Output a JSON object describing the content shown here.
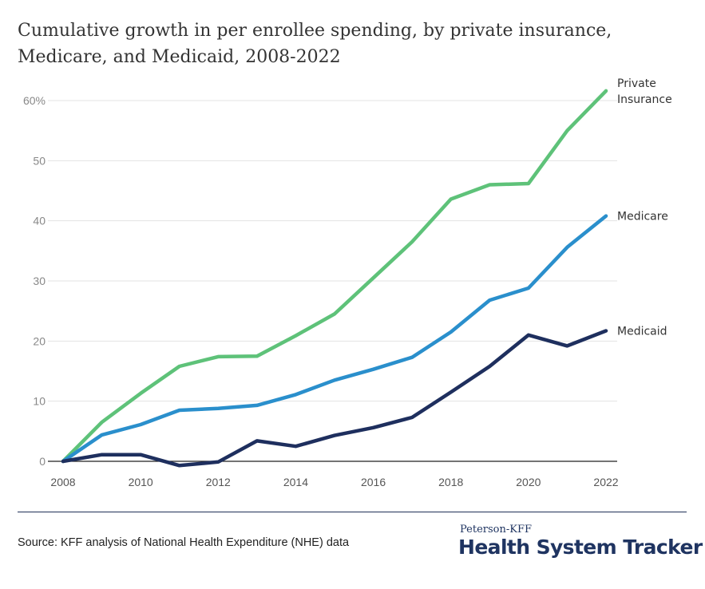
{
  "title": "Cumulative growth in per enrollee spending, by private insurance, Medicare, and Medicaid, 2008-2022",
  "source": "Source: KFF analysis of National Health Expenditure (NHE) data",
  "brand": {
    "small": "Peterson-KFF",
    "big": "Health System Tracker"
  },
  "colors": {
    "private": "#5ec279",
    "medicare": "#2a8fcc",
    "medicaid": "#1e2f5e",
    "grid": "#e3e3e3",
    "axis": "#222222"
  },
  "chart_data": {
    "type": "line",
    "x": [
      2008,
      2009,
      2010,
      2011,
      2012,
      2013,
      2014,
      2015,
      2016,
      2017,
      2018,
      2019,
      2020,
      2021,
      2022
    ],
    "xticks": [
      "2008",
      "2010",
      "2012",
      "2014",
      "2016",
      "2018",
      "2020",
      "2022"
    ],
    "yticks": [
      "0",
      "10",
      "20",
      "30",
      "40",
      "50",
      "60%"
    ],
    "ylim": [
      0,
      60
    ],
    "xlabel": "",
    "ylabel": "",
    "grid": true,
    "series": [
      {
        "name": "Private Insurance",
        "label_lines": [
          "Private",
          "Insurance"
        ],
        "color": "#5ec279",
        "values": [
          0,
          6.5,
          11.3,
          15.8,
          17.4,
          17.5,
          20.9,
          24.5,
          30.5,
          36.5,
          43.6,
          46,
          46.2,
          55,
          61.6
        ]
      },
      {
        "name": "Medicare",
        "label_lines": [
          "Medicare"
        ],
        "color": "#2a8fcc",
        "values": [
          0,
          4.4,
          6.1,
          8.5,
          8.8,
          9.3,
          11.1,
          13.5,
          15.3,
          17.3,
          21.5,
          26.8,
          28.8,
          35.6,
          40.8
        ]
      },
      {
        "name": "Medicaid",
        "label_lines": [
          "Medicaid"
        ],
        "color": "#1e2f5e",
        "values": [
          0,
          1.1,
          1.1,
          -0.7,
          -0.1,
          3.4,
          2.5,
          4.3,
          5.6,
          7.3,
          11.5,
          15.8,
          21,
          19.2,
          21.7
        ]
      }
    ]
  }
}
